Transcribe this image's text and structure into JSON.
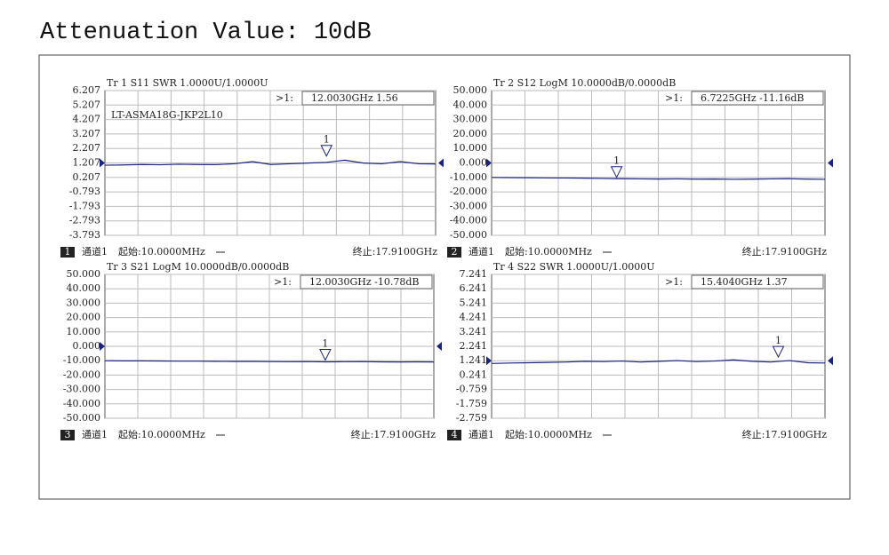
{
  "title": "Attenuation Value: 10dB",
  "chart_data": [
    {
      "type": "line",
      "title": "Tr 1  S11 SWR 1.0000U/1.0000U",
      "marker_name": ">1:",
      "marker_readout": "12.0030GHz 1.56",
      "annotation": "LT-ASMA18G-JKP2L10",
      "channel": "1",
      "channel_label": "通道1",
      "start": "起始:10.0000MHz",
      "stop": "终止:17.9100GHz",
      "xlim": [
        0.01,
        17.91
      ],
      "ylim": [
        -3.793,
        6.207
      ],
      "yticks": [
        6.207,
        5.207,
        4.207,
        3.207,
        2.207,
        1.207,
        0.207,
        -0.793,
        -1.793,
        -2.793,
        -3.793
      ],
      "ref": 1.207,
      "color": "#1a237e",
      "x": [
        0.01,
        1,
        2,
        3,
        4,
        5,
        6,
        7,
        8,
        9,
        10,
        11,
        12,
        13,
        14,
        15,
        16,
        17,
        17.91
      ],
      "values": [
        1.05,
        1.07,
        1.1,
        1.08,
        1.12,
        1.1,
        1.09,
        1.15,
        1.3,
        1.1,
        1.15,
        1.2,
        1.25,
        1.4,
        1.2,
        1.15,
        1.3,
        1.15,
        1.14
      ],
      "markers": [
        {
          "label": "1",
          "x": 12.003,
          "value": 1.56
        }
      ]
    },
    {
      "type": "line",
      "title": "Tr 2  S12 LogM 10.0000dB/0.0000dB",
      "marker_name": ">1:",
      "marker_readout": "6.7225GHz -11.16dB",
      "channel": "2",
      "channel_label": "通道1",
      "start": "起始:10.0000MHz",
      "stop": "终止:17.9100GHz",
      "xlim": [
        0.01,
        17.91
      ],
      "ylim": [
        -50,
        50
      ],
      "yticks": [
        {
          "value": 50,
          "label": "50.000"
        },
        {
          "value": 40,
          "label": "40.000"
        },
        {
          "value": 30,
          "label": "30.000"
        },
        {
          "value": 20,
          "label": "20.000"
        },
        {
          "value": 10,
          "label": "10.000"
        },
        {
          "value": 0,
          "label": "0.000"
        },
        {
          "value": -10,
          "label": "-10.000"
        },
        {
          "value": -20,
          "label": "-20.000"
        },
        {
          "value": -30,
          "label": "-30.000"
        },
        {
          "value": -40,
          "label": "-40.000"
        },
        {
          "value": -50,
          "label": "-50.000"
        }
      ],
      "ref": 0,
      "color": "#1a237e",
      "x": [
        0.01,
        1,
        2,
        3,
        4,
        5,
        6,
        7,
        8,
        9,
        10,
        11,
        12,
        13,
        14,
        15,
        16,
        17,
        17.91
      ],
      "values": [
        -10.0,
        -10.1,
        -10.2,
        -10.3,
        -10.4,
        -10.5,
        -10.7,
        -10.9,
        -11.0,
        -11.1,
        -11.0,
        -11.2,
        -11.1,
        -11.3,
        -11.2,
        -11.0,
        -10.9,
        -11.2,
        -11.3
      ],
      "markers": [
        {
          "label": "1",
          "x": 6.7225,
          "value": -11.16
        }
      ]
    },
    {
      "type": "line",
      "title": "Tr 3  S21 LogM 10.0000dB/0.0000dB",
      "marker_name": ">1:",
      "marker_readout": "12.0030GHz -10.78dB",
      "channel": "3",
      "channel_label": "通道1",
      "start": "起始:10.0000MHz",
      "stop": "终止:17.9100GHz",
      "xlim": [
        0.01,
        17.91
      ],
      "ylim": [
        -50,
        50
      ],
      "yticks": [
        {
          "value": 50,
          "label": "50.000"
        },
        {
          "value": 40,
          "label": "40.000"
        },
        {
          "value": 30,
          "label": "30.000"
        },
        {
          "value": 20,
          "label": "20.000"
        },
        {
          "value": 10,
          "label": "10.000"
        },
        {
          "value": 0,
          "label": "0.000"
        },
        {
          "value": -10,
          "label": "-10.000"
        },
        {
          "value": -20,
          "label": "-20.000"
        },
        {
          "value": -30,
          "label": "-30.000"
        },
        {
          "value": -40,
          "label": "-40.000"
        },
        {
          "value": -50,
          "label": "-50.000"
        }
      ],
      "ref": 0,
      "color": "#1a237e",
      "x": [
        0.01,
        1,
        2,
        3,
        4,
        5,
        6,
        7,
        8,
        9,
        10,
        11,
        12,
        13,
        14,
        15,
        16,
        17,
        17.91
      ],
      "values": [
        -10.0,
        -10.1,
        -10.1,
        -10.2,
        -10.3,
        -10.3,
        -10.4,
        -10.5,
        -10.5,
        -10.6,
        -10.7,
        -10.6,
        -10.8,
        -10.7,
        -10.6,
        -10.8,
        -10.9,
        -10.8,
        -10.9
      ],
      "markers": [
        {
          "label": "1",
          "x": 12.003,
          "value": -10.78
        }
      ]
    },
    {
      "type": "line",
      "title": "Tr 4  S22 SWR 1.0000U/1.0000U",
      "marker_name": ">1:",
      "marker_readout": "15.4040GHz 1.37",
      "channel": "4",
      "channel_label": "通道1",
      "start": "起始:10.0000MHz",
      "stop": "终止:17.9100GHz",
      "xlim": [
        0.01,
        17.91
      ],
      "ylim": [
        -2.759,
        7.241
      ],
      "yticks": [
        7.241,
        6.241,
        5.241,
        4.241,
        3.241,
        2.241,
        1.241,
        0.241,
        -0.759,
        -1.759,
        -2.759
      ],
      "ref": 1.241,
      "color": "#1a237e",
      "x": [
        0.01,
        1,
        2,
        3,
        4,
        5,
        6,
        7,
        8,
        9,
        10,
        11,
        12,
        13,
        14,
        15,
        16,
        17,
        17.91
      ],
      "values": [
        1.05,
        1.08,
        1.1,
        1.12,
        1.15,
        1.2,
        1.18,
        1.22,
        1.15,
        1.2,
        1.25,
        1.18,
        1.22,
        1.3,
        1.2,
        1.15,
        1.25,
        1.1,
        1.08
      ],
      "markers": [
        {
          "label": "1",
          "x": 15.404,
          "value": 1.37
        }
      ]
    }
  ]
}
